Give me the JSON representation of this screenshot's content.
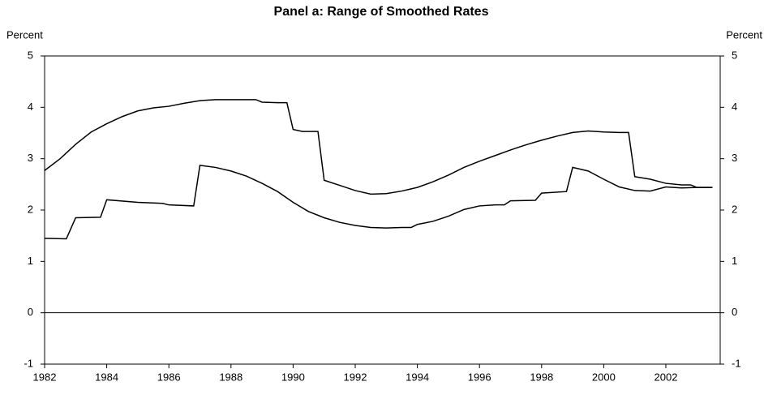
{
  "chart_data": {
    "type": "line",
    "title": "Panel a: Range of Smoothed Rates",
    "ylabel": "Percent",
    "y2label": "Percent",
    "xlim": [
      1982,
      2003.75
    ],
    "xticks": [
      1982,
      1984,
      1986,
      1988,
      1990,
      1992,
      1994,
      1996,
      1998,
      2000,
      2002
    ],
    "ylim": [
      -1,
      5
    ],
    "yticks": [
      -1,
      0,
      1,
      2,
      3,
      4,
      5
    ],
    "y2lim": [
      -1,
      5
    ],
    "y2ticks": [
      -1,
      0,
      1,
      2,
      3,
      4,
      5
    ],
    "series": [
      {
        "color": "#000000",
        "x": [
          1982.0,
          1982.5,
          1983.0,
          1983.5,
          1984.0,
          1984.5,
          1985.0,
          1985.5,
          1986.0,
          1986.5,
          1987.0,
          1987.5,
          1988.0,
          1988.5,
          1988.8,
          1989.0,
          1989.5,
          1989.8,
          1990.0,
          1990.3,
          1990.8,
          1991.0,
          1991.5,
          1992.0,
          1992.5,
          1993.0,
          1993.5,
          1994.0,
          1994.5,
          1995.0,
          1995.5,
          1996.0,
          1996.5,
          1997.0,
          1997.5,
          1998.0,
          1998.5,
          1999.0,
          1999.5,
          2000.0,
          2000.5,
          2000.8,
          2001.0,
          2001.5,
          2002.0,
          2002.5,
          2002.8,
          2003.0,
          2003.5
        ],
        "values": [
          2.77,
          3.0,
          3.28,
          3.52,
          3.68,
          3.82,
          3.93,
          3.99,
          4.02,
          4.08,
          4.13,
          4.15,
          4.15,
          4.15,
          4.15,
          4.1,
          4.09,
          4.09,
          3.57,
          3.53,
          3.53,
          2.58,
          2.48,
          2.38,
          2.31,
          2.32,
          2.37,
          2.44,
          2.55,
          2.68,
          2.83,
          2.95,
          3.06,
          3.17,
          3.27,
          3.36,
          3.44,
          3.51,
          3.54,
          3.52,
          3.51,
          3.51,
          2.65,
          2.6,
          2.52,
          2.49,
          2.49,
          2.44,
          2.44
        ]
      },
      {
        "color": "#000000",
        "x": [
          1982.0,
          1982.7,
          1983.0,
          1983.8,
          1984.0,
          1985.0,
          1985.8,
          1986.0,
          1986.8,
          1987.0,
          1987.5,
          1988.0,
          1988.5,
          1989.0,
          1989.5,
          1990.0,
          1990.5,
          1991.0,
          1991.5,
          1992.0,
          1992.5,
          1993.0,
          1993.5,
          1993.8,
          1994.0,
          1994.5,
          1995.0,
          1995.5,
          1996.0,
          1996.5,
          1996.8,
          1997.0,
          1997.8,
          1998.0,
          1998.8,
          1999.0,
          1999.5,
          2000.0,
          2000.5,
          2001.0,
          2001.5,
          2002.0,
          2002.5,
          2003.0,
          2003.5
        ],
        "values": [
          1.45,
          1.44,
          1.85,
          1.86,
          2.2,
          2.15,
          2.13,
          2.1,
          2.08,
          2.87,
          2.83,
          2.76,
          2.66,
          2.52,
          2.36,
          2.15,
          1.97,
          1.85,
          1.76,
          1.7,
          1.66,
          1.65,
          1.66,
          1.66,
          1.72,
          1.78,
          1.88,
          2.01,
          2.08,
          2.1,
          2.1,
          2.18,
          2.19,
          2.33,
          2.36,
          2.83,
          2.76,
          2.6,
          2.45,
          2.38,
          2.37,
          2.45,
          2.43,
          2.44,
          2.44
        ]
      }
    ]
  }
}
